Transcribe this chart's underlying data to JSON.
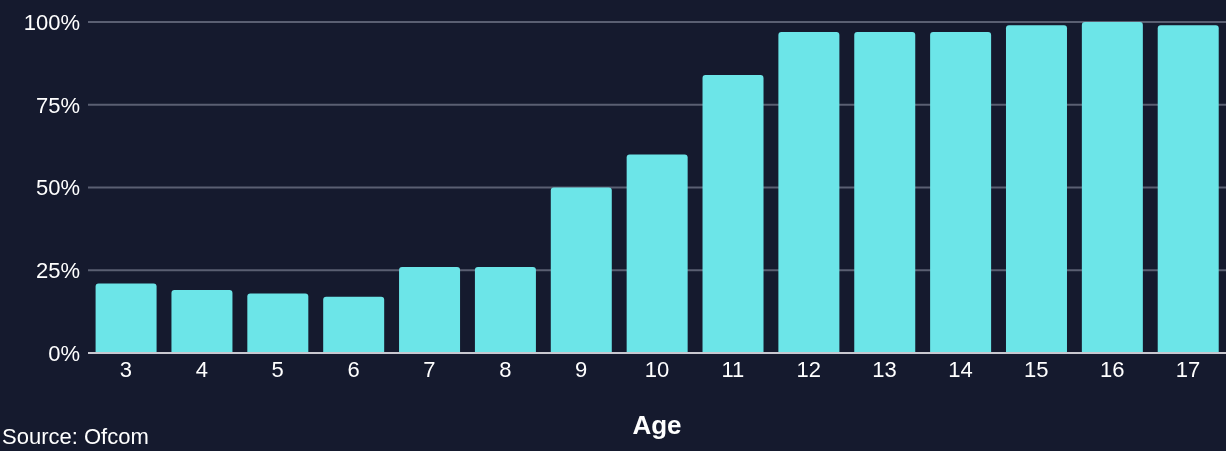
{
  "chart_data": {
    "type": "bar",
    "xlabel": "Age",
    "categories": [
      "3",
      "4",
      "5",
      "6",
      "7",
      "8",
      "9",
      "10",
      "11",
      "12",
      "13",
      "14",
      "15",
      "16",
      "17"
    ],
    "values": [
      21,
      19,
      18,
      17,
      26,
      26,
      50,
      60,
      84,
      97,
      97,
      97,
      99,
      100,
      99
    ],
    "color": "#6ce5e8",
    "ylim": [
      0,
      100
    ],
    "yticks": [
      {
        "value": 0,
        "label": "0%"
      },
      {
        "value": 25,
        "label": "25%"
      },
      {
        "value": 50,
        "label": "50%"
      },
      {
        "value": 75,
        "label": "75%"
      },
      {
        "value": 100,
        "label": "100%"
      }
    ],
    "grid": "y",
    "annotations": [
      "Source: Ofcom"
    ]
  }
}
